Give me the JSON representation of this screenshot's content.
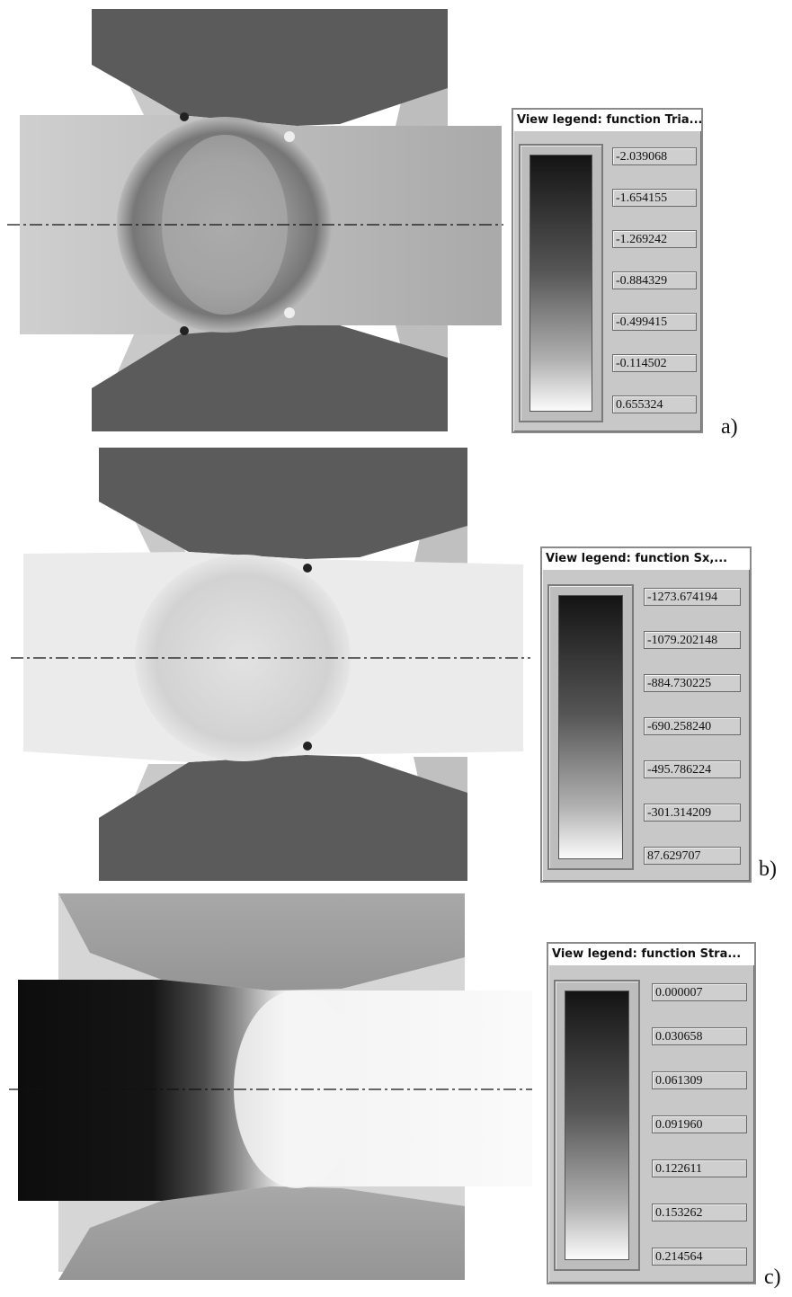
{
  "panels": [
    {
      "label": "a)",
      "legend": {
        "title": "View legend: function Tria...",
        "values": [
          "-2.039068",
          "-1.654155",
          "-1.269242",
          "-0.884329",
          "-0.499415",
          "-0.114502",
          "0.655324"
        ]
      }
    },
    {
      "label": "b)",
      "legend": {
        "title": "View legend: function Sx,...",
        "values": [
          "-1273.674194",
          "-1079.202148",
          "-884.730225",
          "-690.258240",
          "-495.786224",
          "-301.314209",
          "87.629707"
        ]
      }
    },
    {
      "label": "c)",
      "legend": {
        "title": "View legend: function Stra...",
        "values": [
          "0.000007",
          "0.030658",
          "0.061309",
          "0.091960",
          "0.122611",
          "0.153262",
          "0.214564"
        ]
      }
    }
  ],
  "colors": {
    "roll": "#5b5b5b",
    "roll_light": "#9a9a9a",
    "axis": "#111111"
  }
}
